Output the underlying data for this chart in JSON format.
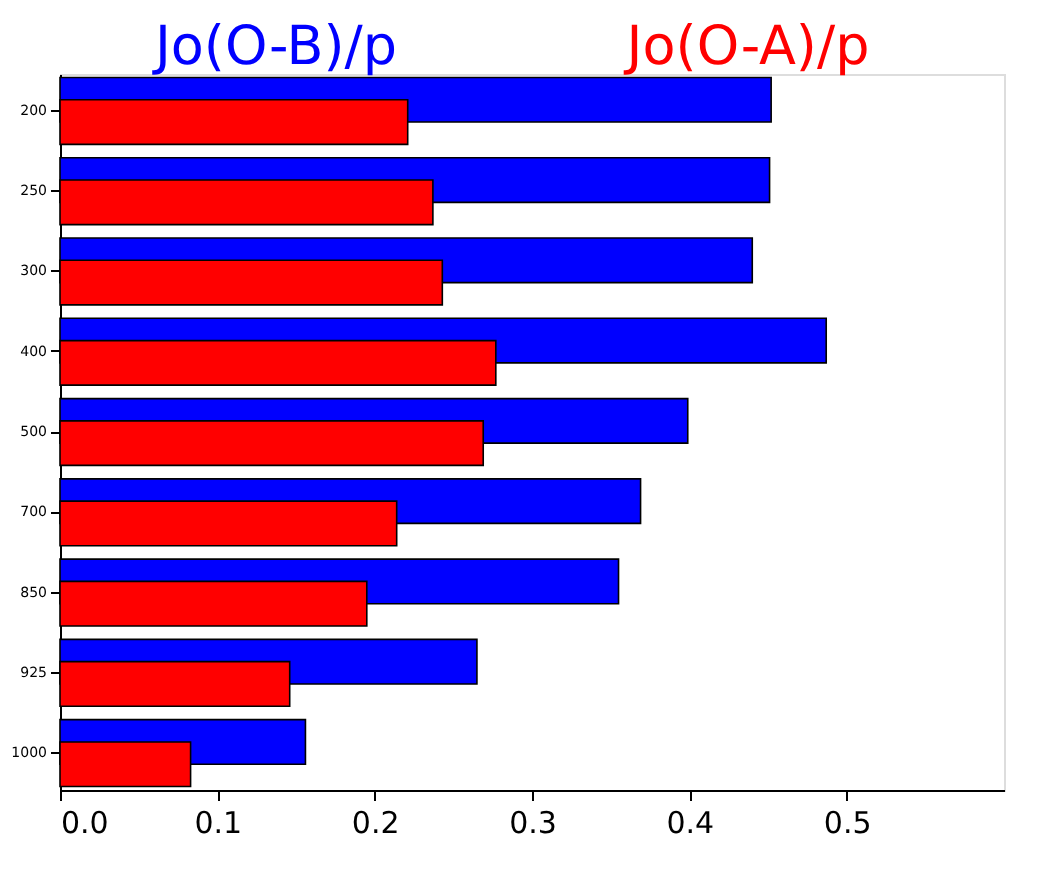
{
  "chart_data": {
    "type": "bar",
    "orientation": "horizontal",
    "categories": [
      "200",
      "250",
      "300",
      "400",
      "500",
      "700",
      "850",
      "925",
      "1000"
    ],
    "series": [
      {
        "name": "Jo(O-B)/p",
        "color": "#0000ff",
        "values": [
          0.452,
          0.451,
          0.44,
          0.487,
          0.399,
          0.369,
          0.355,
          0.265,
          0.156
        ]
      },
      {
        "name": "Jo(O-A)/p",
        "color": "#ff0000",
        "values": [
          0.221,
          0.237,
          0.243,
          0.277,
          0.269,
          0.214,
          0.195,
          0.146,
          0.083
        ]
      }
    ],
    "xlim": [
      0,
      0.6
    ],
    "xticks": [
      {
        "value": 0,
        "label": "0.0"
      },
      0.1,
      0.2,
      0.3,
      0.4,
      0.5
    ],
    "grid": false,
    "legend": "top"
  }
}
